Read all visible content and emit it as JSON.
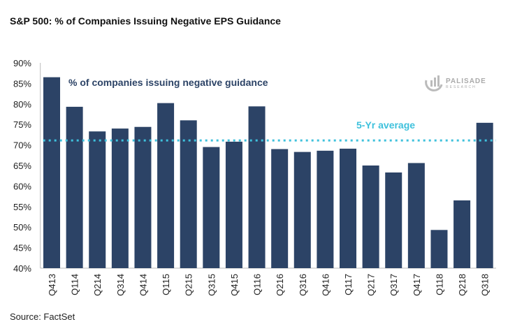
{
  "chart_data": {
    "type": "bar",
    "title": "S&P 500: % of Companies Issuing Negative EPS Guidance",
    "categories": [
      "Q413",
      "Q114",
      "Q214",
      "Q314",
      "Q414",
      "Q115",
      "Q215",
      "Q315",
      "Q415",
      "Q116",
      "Q216",
      "Q316",
      "Q416",
      "Q117",
      "Q217",
      "Q317",
      "Q417",
      "Q118",
      "Q218",
      "Q318"
    ],
    "series": [
      {
        "name": "% of companies issuing negative guidance",
        "values": [
          86.5,
          79.3,
          73.3,
          74.0,
          74.4,
          80.2,
          76.0,
          69.5,
          70.8,
          79.4,
          69.0,
          68.3,
          68.6,
          69.1,
          65.0,
          63.3,
          65.6,
          49.3,
          56.5,
          75.4
        ]
      }
    ],
    "reference_line": {
      "name": "5-Yr average",
      "value": 71.1,
      "color": "#3ec1dc"
    },
    "ylim": [
      40,
      90
    ],
    "yticks": [
      "40%",
      "45%",
      "50%",
      "55%",
      "60%",
      "65%",
      "70%",
      "75%",
      "80%",
      "85%",
      "90%"
    ],
    "bar_color": "#2c4366",
    "grid": false,
    "source": "Source: FactSet",
    "logo": {
      "name": "PALISADE",
      "sub": "RESEARCH"
    }
  }
}
